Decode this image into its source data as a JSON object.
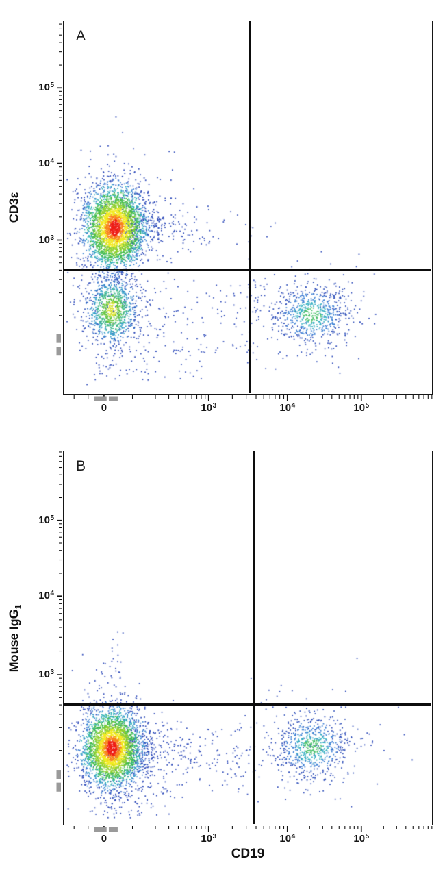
{
  "figure": {
    "type": "flow-cytometry-density-dot-plots",
    "x_axis_label": "CD19",
    "panel_count": 2,
    "colors": {
      "background": "#ffffff",
      "gate_line": "#0d0d0d",
      "axis_line": "#161616",
      "axis_break_marker": "#9a9a9a"
    },
    "density_palettes": {
      "heat": [
        [
          0.38,
          "#ee1d16"
        ],
        [
          0.62,
          "#f8821c"
        ],
        [
          0.95,
          "#f2ea20"
        ],
        [
          1.28,
          "#8fd02e"
        ],
        [
          1.62,
          "#41bb4d"
        ],
        [
          1.95,
          "#2fb0b8"
        ],
        [
          2.35,
          "#3f86d6"
        ],
        [
          99,
          "#2a47b8"
        ]
      ],
      "green": [
        [
          0.45,
          "#d9e233"
        ],
        [
          0.85,
          "#63c43c"
        ],
        [
          1.25,
          "#3cb787"
        ],
        [
          1.65,
          "#35a0c8"
        ],
        [
          2.1,
          "#2f6fc9"
        ],
        [
          99,
          "#2a49b5"
        ]
      ],
      "cyan": [
        [
          0.5,
          "#49c068"
        ],
        [
          0.95,
          "#36afc2"
        ],
        [
          1.5,
          "#3a7fd4"
        ],
        [
          99,
          "#2a4cb8"
        ]
      ],
      "blue": [
        [
          99,
          "#2a47b8"
        ]
      ]
    }
  },
  "chart_data": [
    {
      "type": "scatter",
      "panel": "A",
      "xlabel": "CD19",
      "ylabel": "CD3ε",
      "ylabel_base": "CD3ε",
      "ylabel_sub": "",
      "x_axis": {
        "scale": "biexponential",
        "major_ticks": [
          {
            "label": "0",
            "base": "0",
            "exp": "",
            "value": 0,
            "f": 0.111
          },
          {
            "label": "10^3",
            "base": "10",
            "exp": "3",
            "value": 1000,
            "f": 0.394
          },
          {
            "label": "10^4",
            "base": "10",
            "exp": "4",
            "value": 10000,
            "f": 0.607
          },
          {
            "label": "10^5",
            "base": "10",
            "exp": "5",
            "value": 100000,
            "f": 0.807
          }
        ],
        "decade_anchors": [
          0.188,
          0.394,
          0.607,
          0.807,
          1.007
        ],
        "extra_minor_f": [
          0.03,
          0.068,
          0.188
        ]
      },
      "y_axis": {
        "scale": "biexponential",
        "major_ticks": [
          {
            "label": "10^5",
            "base": "10",
            "exp": "5",
            "value": 100000,
            "f": 0.18
          },
          {
            "label": "10^4",
            "base": "10",
            "exp": "4",
            "value": 10000,
            "f": 0.382
          },
          {
            "label": "10^3",
            "base": "10",
            "exp": "3",
            "value": 1000,
            "f": 0.587
          }
        ],
        "decade_anchors": [
          0.789,
          0.587,
          0.382,
          0.18,
          -0.022
        ],
        "extra_minor_f": [
          0.789
        ]
      },
      "quadrant_gate": {
        "x_value": 3500,
        "y_value": 600,
        "fx": 0.505,
        "fy": 0.665
      },
      "axis_break_markers": {
        "x_f": [
          [
            0.085,
            0.118
          ],
          [
            0.124,
            0.148
          ]
        ],
        "y_f": [
          [
            0.838,
            0.862
          ],
          [
            0.872,
            0.896
          ]
        ]
      },
      "populations": [
        {
          "name": "background-scatter-mid",
          "type": "box",
          "x_range": [
            0.13,
            0.53
          ],
          "y_range": [
            0.69,
            0.89
          ],
          "events": 140,
          "palette": "blue"
        },
        {
          "name": "background-scatter-right-of-gate",
          "type": "box",
          "x_range": [
            0.52,
            0.63
          ],
          "y_range": [
            0.7,
            0.82
          ],
          "events": 18,
          "palette": "blue"
        },
        {
          "name": "background-scatter-bottom",
          "type": "box",
          "x_range": [
            0.09,
            0.42
          ],
          "y_range": [
            0.88,
            0.965
          ],
          "events": 55,
          "palette": "blue"
        },
        {
          "name": "cd19-dim-smear",
          "type": "smear",
          "x_start": 0.165,
          "x_tau": 0.09,
          "x_max": 0.58,
          "y_center": 0.552,
          "y_sigma": 0.034,
          "events": 240,
          "palette": "blue"
        },
        {
          "name": "t-cell-halo",
          "type": "gauss",
          "f_center": [
            0.135,
            0.553
          ],
          "f_sigma": [
            0.095,
            0.12
          ],
          "events": 240,
          "palette": "blue"
        },
        {
          "name": "double-negative-halo",
          "type": "gauss",
          "f_center": [
            0.128,
            0.773
          ],
          "f_sigma": [
            0.075,
            0.095
          ],
          "events": 150,
          "palette": "blue"
        },
        {
          "name": "b-cell-halo",
          "type": "gauss",
          "f_center": [
            0.672,
            0.787
          ],
          "f_sigma": [
            0.105,
            0.075
          ],
          "events": 130,
          "palette": "blue"
        },
        {
          "name": "b-cells",
          "phenotype": "CD19+ CD3ε-",
          "approx_center": {
            "x": 20000,
            "y": 300
          },
          "type": "gauss",
          "f_center": [
            0.672,
            0.787
          ],
          "f_sigma": [
            0.048,
            0.04
          ],
          "events": 620,
          "palette": "cyan"
        },
        {
          "name": "double-negative-cells",
          "phenotype": "CD19- CD3ε-",
          "approx_center": {
            "x": 50,
            "y": 300
          },
          "type": "gauss",
          "f_center": [
            0.128,
            0.773
          ],
          "f_sigma": [
            0.033,
            0.044
          ],
          "events": 950,
          "palette": "green"
        },
        {
          "name": "t-cells",
          "phenotype": "CD3ε+ CD19-",
          "approx_center": {
            "x": 50,
            "y": 1400
          },
          "type": "gauss",
          "f_center": [
            0.135,
            0.553
          ],
          "f_sigma": [
            0.041,
            0.055
          ],
          "events": 3200,
          "palette": "heat"
        }
      ]
    },
    {
      "type": "scatter",
      "panel": "B",
      "xlabel": "CD19",
      "ylabel": "Mouse IgG1",
      "ylabel_base": "Mouse IgG",
      "ylabel_sub": "1",
      "x_axis": {
        "scale": "biexponential",
        "major_ticks": [
          {
            "label": "0",
            "base": "0",
            "exp": "",
            "value": 0,
            "f": 0.111
          },
          {
            "label": "10^3",
            "base": "10",
            "exp": "3",
            "value": 1000,
            "f": 0.394
          },
          {
            "label": "10^4",
            "base": "10",
            "exp": "4",
            "value": 10000,
            "f": 0.607
          },
          {
            "label": "10^5",
            "base": "10",
            "exp": "5",
            "value": 100000,
            "f": 0.807
          }
        ],
        "decade_anchors": [
          0.188,
          0.394,
          0.607,
          0.807,
          1.007
        ],
        "extra_minor_f": [
          0.03,
          0.068,
          0.188
        ]
      },
      "y_axis": {
        "scale": "biexponential",
        "major_ticks": [
          {
            "label": "10^5",
            "base": "10",
            "exp": "5",
            "value": 100000,
            "f": 0.186
          },
          {
            "label": "10^4",
            "base": "10",
            "exp": "4",
            "value": 10000,
            "f": 0.388
          },
          {
            "label": "10^3",
            "base": "10",
            "exp": "3",
            "value": 1000,
            "f": 0.598
          }
        ],
        "decade_anchors": [
          0.8,
          0.598,
          0.388,
          0.186,
          -0.016
        ],
        "extra_minor_f": [
          0.8
        ]
      },
      "quadrant_gate": {
        "x_value": 3800,
        "y_value": 550,
        "fx": 0.515,
        "fy": 0.676
      },
      "axis_break_markers": {
        "x_f": [
          [
            0.085,
            0.118
          ],
          [
            0.124,
            0.148
          ]
        ],
        "y_f": [
          [
            0.852,
            0.876
          ],
          [
            0.886,
            0.91
          ]
        ]
      },
      "populations": [
        {
          "name": "background-scatter-mid",
          "type": "box",
          "x_range": [
            0.12,
            0.52
          ],
          "y_range": [
            0.73,
            0.92
          ],
          "events": 110,
          "palette": "blue"
        },
        {
          "name": "background-scatter-right-of-gate",
          "type": "box",
          "x_range": [
            0.52,
            0.68
          ],
          "y_range": [
            0.72,
            0.88
          ],
          "events": 25,
          "palette": "blue"
        },
        {
          "name": "background-scatter-bottom",
          "type": "box",
          "x_range": [
            0.09,
            0.3
          ],
          "y_range": [
            0.9,
            0.975
          ],
          "events": 45,
          "palette": "blue"
        },
        {
          "name": "cd19-dim-smear",
          "type": "smear",
          "x_start": 0.165,
          "x_tau": 0.1,
          "x_max": 0.6,
          "y_center": 0.8,
          "y_sigma": 0.04,
          "events": 260,
          "palette": "blue"
        },
        {
          "name": "isotype-positive-sparse",
          "type": "gauss",
          "f_center": [
            0.135,
            0.575
          ],
          "f_sigma": [
            0.018,
            0.048
          ],
          "events": 20,
          "palette": "blue"
        },
        {
          "name": "stray-dots-upper-right",
          "type": "box",
          "x_range": [
            0.555,
            0.6
          ],
          "y_range": [
            0.61,
            0.645
          ],
          "events": 2,
          "palette": "blue"
        },
        {
          "name": "negative-main-halo",
          "type": "gauss",
          "f_center": [
            0.128,
            0.795
          ],
          "f_sigma": [
            0.085,
            0.11
          ],
          "events": 220,
          "palette": "blue"
        },
        {
          "name": "b-cell-halo",
          "type": "gauss",
          "f_center": [
            0.674,
            0.79
          ],
          "f_sigma": [
            0.1,
            0.07
          ],
          "events": 120,
          "palette": "blue"
        },
        {
          "name": "b-cells",
          "phenotype": "CD19+ IgG1-",
          "approx_center": {
            "x": 20000,
            "y": 250
          },
          "type": "gauss",
          "f_center": [
            0.674,
            0.79
          ],
          "f_sigma": [
            0.048,
            0.042
          ],
          "events": 650,
          "palette": "cyan"
        },
        {
          "name": "negative-cells",
          "phenotype": "CD19- IgG1-",
          "approx_center": {
            "x": 50,
            "y": 250
          },
          "type": "gauss",
          "f_center": [
            0.128,
            0.795
          ],
          "f_sigma": [
            0.04,
            0.052
          ],
          "events": 3200,
          "palette": "heat"
        }
      ]
    }
  ]
}
